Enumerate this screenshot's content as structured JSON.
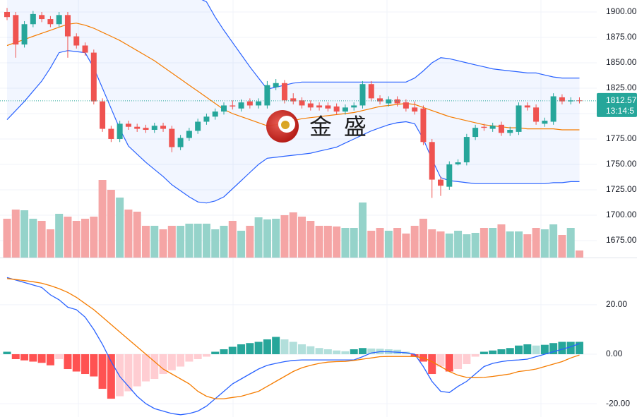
{
  "chart_data": {
    "type": "candlestick",
    "watermark": "金 盛",
    "up_color": "#26a69a",
    "down_color": "#ef5350",
    "open": [
      1900,
      1897,
      1868,
      1888,
      1897,
      1893,
      1888,
      1897,
      1876,
      1867,
      1860,
      1812,
      1785,
      1775,
      1790,
      1787,
      1786,
      1784,
      1788,
      1785,
      1767,
      1776,
      1783,
      1792,
      1797,
      1802,
      1808,
      1805,
      1812,
      1808,
      1808,
      1826,
      1830,
      1815,
      1813,
      1810,
      1808,
      1808,
      1807,
      1802,
      1806,
      1808,
      1829,
      1815,
      1810,
      1814,
      1811,
      1806,
      1805,
      1772,
      1735,
      1728,
      1750,
      1752,
      1777,
      1787,
      1785,
      1789,
      1781,
      1782,
      1808,
      1806,
      1790,
      1792,
      1816,
      1812,
      1813
    ],
    "high": [
      1904,
      1900,
      1891,
      1901,
      1900,
      1896,
      1900,
      1900,
      1879,
      1870,
      1863,
      1815,
      1788,
      1793,
      1793,
      1790,
      1789,
      1791,
      1791,
      1788,
      1779,
      1786,
      1795,
      1800,
      1805,
      1811,
      1813,
      1814,
      1815,
      1815,
      1832,
      1834,
      1833,
      1820,
      1816,
      1813,
      1811,
      1811,
      1810,
      1809,
      1811,
      1832,
      1832,
      1818,
      1817,
      1817,
      1814,
      1812,
      1808,
      1775,
      1738,
      1753,
      1755,
      1780,
      1789,
      1790,
      1791,
      1792,
      1787,
      1811,
      1811,
      1809,
      1796,
      1820,
      1819,
      1816,
      1816
    ],
    "low": [
      1892,
      1855,
      1865,
      1885,
      1890,
      1885,
      1885,
      1855,
      1864,
      1857,
      1809,
      1782,
      1772,
      1772,
      1784,
      1782,
      1781,
      1781,
      1782,
      1762,
      1764,
      1773,
      1780,
      1789,
      1794,
      1799,
      1804,
      1802,
      1805,
      1805,
      1805,
      1823,
      1810,
      1809,
      1805,
      1803,
      1803,
      1802,
      1799,
      1799,
      1803,
      1805,
      1812,
      1809,
      1807,
      1807,
      1802,
      1799,
      1769,
      1717,
      1719,
      1725,
      1749,
      1749,
      1774,
      1783,
      1782,
      1778,
      1778,
      1779,
      1803,
      1789,
      1787,
      1789,
      1809,
      1809,
      1810
    ],
    "close": [
      1895,
      1868,
      1888,
      1898,
      1893,
      1888,
      1897,
      1876,
      1867,
      1860,
      1812,
      1785,
      1775,
      1790,
      1787,
      1785,
      1784,
      1788,
      1785,
      1767,
      1776,
      1783,
      1792,
      1797,
      1802,
      1808,
      1807,
      1811,
      1808,
      1812,
      1828,
      1830,
      1813,
      1812,
      1808,
      1806,
      1806,
      1805,
      1802,
      1806,
      1808,
      1829,
      1815,
      1812,
      1814,
      1810,
      1805,
      1802,
      1772,
      1735,
      1729,
      1750,
      1752,
      1777,
      1786,
      1786,
      1788,
      1781,
      1784,
      1808,
      1806,
      1792,
      1793,
      1817,
      1812,
      1813,
      1812.57
    ],
    "bollinger": {
      "band_color": "#2962ff",
      "middle_color": "#f57c00",
      "upper": [
        1935,
        1940,
        1945,
        1948,
        1950,
        1952,
        1955,
        1958,
        1960,
        1962,
        1965,
        1965,
        1962,
        1958,
        1955,
        1950,
        1945,
        1940,
        1935,
        1928,
        1922,
        1918,
        1914,
        1910,
        1895,
        1882,
        1870,
        1858,
        1846,
        1835,
        1824,
        1826,
        1828,
        1830,
        1831,
        1831,
        1831,
        1831,
        1831,
        1831,
        1831,
        1831,
        1831,
        1831,
        1831,
        1831,
        1831,
        1835,
        1842,
        1850,
        1855,
        1854,
        1852,
        1850,
        1848,
        1846,
        1844,
        1843,
        1842,
        1841,
        1840,
        1840,
        1838,
        1836,
        1835,
        1835,
        1835
      ],
      "middle": [
        1867,
        1870,
        1873,
        1876,
        1879,
        1882,
        1885,
        1888,
        1889,
        1887,
        1884,
        1880,
        1876,
        1872,
        1867,
        1862,
        1857,
        1852,
        1846,
        1840,
        1834,
        1828,
        1822,
        1816,
        1810,
        1804,
        1800,
        1797,
        1794,
        1791,
        1788,
        1789,
        1791,
        1793,
        1795,
        1796,
        1797,
        1798,
        1799,
        1800,
        1801,
        1803,
        1805,
        1807,
        1808,
        1809,
        1810,
        1809,
        1806,
        1803,
        1800,
        1797,
        1795,
        1793,
        1791,
        1789,
        1788,
        1787,
        1786,
        1786,
        1785,
        1785,
        1785,
        1785,
        1784,
        1784,
        1784
      ],
      "lower": [
        1794,
        1803,
        1812,
        1822,
        1832,
        1845,
        1860,
        1862,
        1861,
        1860,
        1845,
        1825,
        1805,
        1785,
        1768,
        1760,
        1752,
        1745,
        1738,
        1730,
        1724,
        1718,
        1713,
        1712,
        1714,
        1718,
        1726,
        1734,
        1742,
        1750,
        1756,
        1757,
        1758,
        1759,
        1760,
        1761,
        1763,
        1765,
        1767,
        1771,
        1775,
        1779,
        1783,
        1786,
        1789,
        1791,
        1792,
        1790,
        1775,
        1755,
        1737,
        1734,
        1733,
        1732,
        1731,
        1731,
        1731,
        1731,
        1731,
        1731,
        1731,
        1731,
        1731,
        1732,
        1732,
        1733,
        1733
      ]
    },
    "volume": {
      "up_color": "#95d3ca",
      "down_color": "#f5a5a5",
      "values": [
        55,
        68,
        67,
        55,
        52,
        40,
        62,
        58,
        52,
        55,
        58,
        110,
        96,
        85,
        68,
        65,
        45,
        45,
        40,
        45,
        45,
        48,
        48,
        48,
        40,
        45,
        52,
        38,
        45,
        57,
        54,
        55,
        60,
        64,
        58,
        52,
        45,
        45,
        44,
        42,
        42,
        78,
        38,
        42,
        38,
        42,
        34,
        45,
        55,
        40,
        37,
        34,
        38,
        33,
        35,
        42,
        42,
        47,
        37,
        37,
        33,
        42,
        40,
        47,
        32,
        42,
        10
      ]
    },
    "ylim": [
      1658.3,
      1911.8
    ],
    "yticks": [
      {
        "value": 1900,
        "label": "1900.00"
      },
      {
        "value": 1875,
        "label": "1875.00"
      },
      {
        "value": 1850,
        "label": "1850.00"
      },
      {
        "value": 1825,
        "label": "1825.00"
      },
      {
        "value": 1800,
        "label": "1800.00"
      },
      {
        "value": 1775,
        "label": "1775.00"
      },
      {
        "value": 1750,
        "label": "1750.00"
      },
      {
        "value": 1725,
        "label": "1725.00"
      },
      {
        "value": 1700,
        "label": "1700.00"
      },
      {
        "value": 1675,
        "label": "1675.00"
      }
    ],
    "last_price": {
      "value": 1812.57,
      "label": "1812.57"
    },
    "countdown": "13:14:5",
    "macd": {
      "macd_color": "#2962ff",
      "signal_color": "#f57c00",
      "ylim": [
        -25.4,
        39.1
      ],
      "yticks": [
        {
          "value": 20,
          "label": "20.00"
        },
        {
          "value": 0,
          "label": "0.00"
        },
        {
          "value": -20,
          "label": "-20.00"
        }
      ],
      "macd": [
        31,
        30,
        29,
        28,
        27,
        24,
        22,
        19,
        18,
        15,
        10,
        4,
        -3,
        -9,
        -13,
        -17,
        -20,
        -22,
        -23,
        -24,
        -24.5,
        -24,
        -23,
        -21,
        -18,
        -15,
        -12,
        -10,
        -8,
        -6,
        -4.5,
        -3.7,
        -3,
        -2.5,
        -2.3,
        -2.3,
        -2.3,
        -2.3,
        -2.3,
        -2.3,
        -2.3,
        -1,
        0.5,
        1,
        1,
        0.8,
        0.6,
        0,
        -5,
        -11,
        -15,
        -15.5,
        -13,
        -11,
        -8,
        -5,
        -3.7,
        -3,
        -2.5,
        -2.3,
        -2,
        -1,
        0,
        1,
        2,
        3,
        4.3
      ],
      "signal": [
        30.6,
        30.2,
        29.8,
        29.3,
        28.7,
        27.7,
        26.5,
        25,
        23,
        20.5,
        18,
        15,
        12,
        9,
        6,
        3,
        0,
        -3,
        -6,
        -8,
        -10,
        -12,
        -15,
        -17,
        -18,
        -18,
        -17.5,
        -17,
        -16,
        -15,
        -13,
        -11,
        -9,
        -7,
        -5.5,
        -4.5,
        -3.7,
        -3.2,
        -3,
        -2.9,
        -2.5,
        -2,
        -1.5,
        -1,
        -0.9,
        -0.9,
        -0.9,
        -0.9,
        -1.5,
        -3,
        -5,
        -7,
        -8.5,
        -9.4,
        -9.5,
        -9.4,
        -9,
        -8.5,
        -8,
        -7,
        -6.6,
        -6,
        -5,
        -4,
        -3,
        -1.5,
        -0.3
      ],
      "histogram": [
        1,
        -2,
        -2.5,
        -3,
        -3.5,
        -4.5,
        -2,
        -6,
        -7,
        -8,
        -9,
        -14,
        -18,
        -17,
        -15,
        -13,
        -11,
        -10,
        -8,
        -6.5,
        -5,
        -3,
        -2,
        -1,
        1,
        2,
        3,
        4,
        4.5,
        5,
        6,
        7,
        6,
        5,
        4,
        3.2,
        2.5,
        2,
        1.5,
        1.2,
        2,
        2.5,
        2.3,
        2.2,
        2,
        1.8,
        1,
        -1,
        -3,
        -8,
        -5,
        -7,
        -6,
        -4,
        -1,
        1,
        1.5,
        2,
        2.5,
        3.5,
        4,
        3.5,
        3.8,
        4.5,
        5,
        5,
        5
      ]
    }
  }
}
